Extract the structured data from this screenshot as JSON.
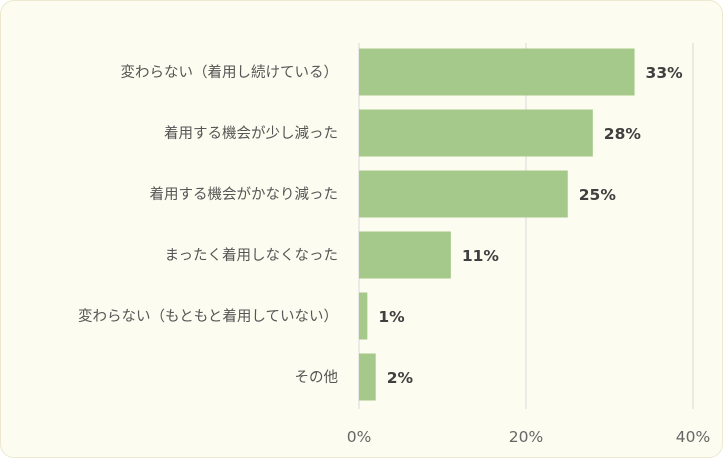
{
  "chart_data": {
    "type": "bar",
    "orientation": "horizontal",
    "categories": [
      "変わらない（着用し続けている）",
      "着用する機会が少し減った",
      "着用する機会がかなり減った",
      "まったく着用しなくなった",
      "変わらない（もともと着用していない）",
      "その他"
    ],
    "values": [
      33,
      28,
      25,
      11,
      1,
      2
    ],
    "value_labels": [
      "33%",
      "28%",
      "25%",
      "11%",
      "1%",
      "2%"
    ],
    "xlim": [
      0,
      40
    ],
    "x_ticks": [
      0,
      20,
      40
    ],
    "x_tick_labels": [
      "0%",
      "20%",
      "40%"
    ],
    "grid": true,
    "legend": "none",
    "colors": {
      "bar": "#a5c98a",
      "grid": "#d9d9d9",
      "background": "#fdfcf0"
    }
  }
}
